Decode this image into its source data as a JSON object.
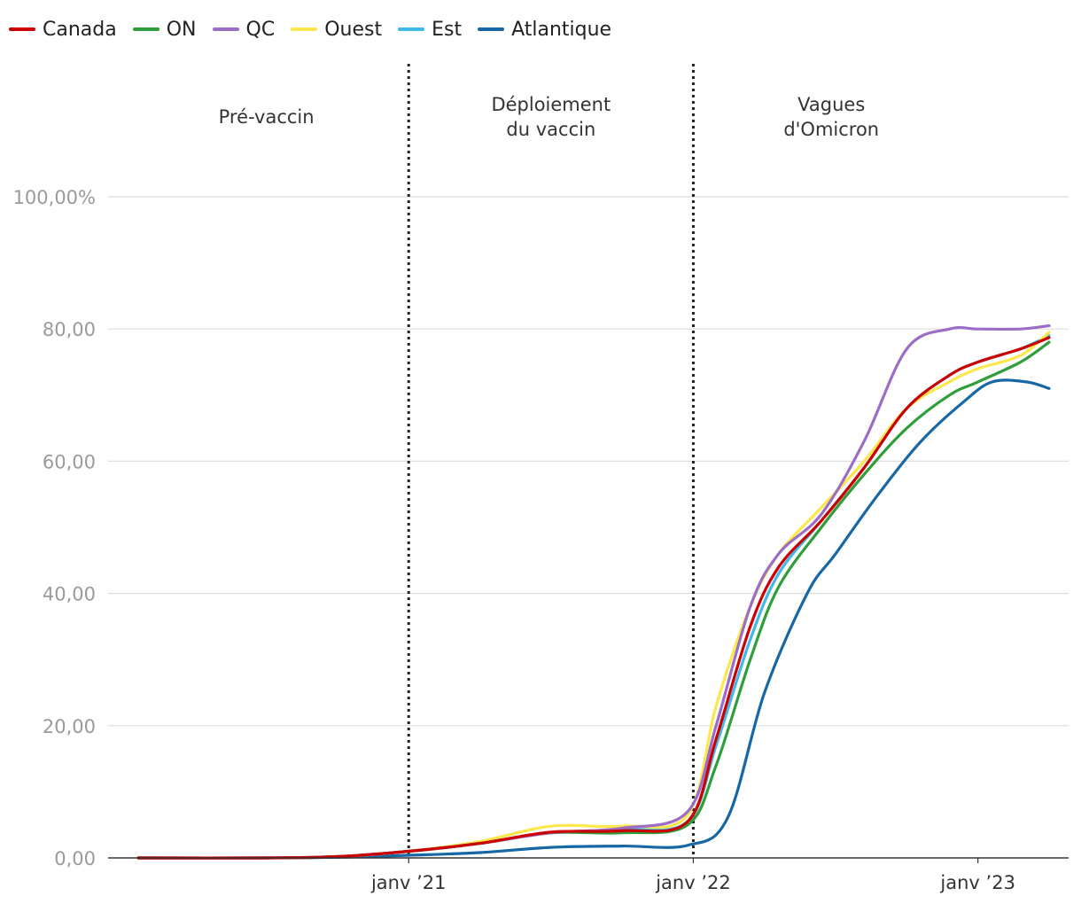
{
  "chart_data": {
    "type": "line",
    "title": "",
    "xlabel": "",
    "ylabel": "",
    "ylim": [
      0,
      100
    ],
    "yticks": [
      {
        "value": 0,
        "label": "0,00"
      },
      {
        "value": 20,
        "label": "20,00"
      },
      {
        "value": 40,
        "label": "40,00"
      },
      {
        "value": 60,
        "label": "60,00"
      },
      {
        "value": 80,
        "label": "80,00"
      },
      {
        "value": 100,
        "label": "100,00%"
      }
    ],
    "xrange": [
      2020.0,
      2023.25
    ],
    "xticks": [
      {
        "value": 2021.0,
        "label": "janv ’21"
      },
      {
        "value": 2022.0,
        "label": "janv ’22"
      },
      {
        "value": 2023.0,
        "label": "janv ’23"
      }
    ],
    "phases": [
      {
        "lines": [
          "Pré-vaccin"
        ],
        "start": 2020.0,
        "end": 2021.0
      },
      {
        "lines": [
          "Déploiement",
          "du vaccin"
        ],
        "start": 2021.0,
        "end": 2022.0
      },
      {
        "lines": [
          "Vagues",
          "d'Omicron"
        ],
        "start": 2022.0,
        "end": 2023.25
      }
    ],
    "dividers": [
      2021.0,
      2022.0
    ],
    "series": [
      {
        "name": "Atlantique",
        "color": "#1767a5",
        "x": [
          2020.05,
          2020.5,
          2020.75,
          2021.0,
          2021.25,
          2021.5,
          2021.75,
          2021.98,
          2022.12,
          2022.25,
          2022.4,
          2022.5,
          2022.65,
          2022.8,
          2022.95,
          2023.05,
          2023.17,
          2023.25
        ],
        "y": [
          0,
          0,
          0.1,
          0.4,
          0.8,
          1.6,
          1.8,
          1.9,
          6,
          25,
          40,
          46,
          55,
          63,
          69,
          72,
          72,
          71
        ]
      },
      {
        "name": "Est",
        "color": "#3eb9ea",
        "x": [
          2020.05,
          2020.5,
          2020.75,
          2021.0,
          2021.25,
          2021.5,
          2021.75,
          2021.98,
          2022.08,
          2022.2,
          2022.3,
          2022.45,
          2022.6,
          2022.75,
          2022.9,
          2023.0,
          2023.15,
          2023.25
        ],
        "y": [
          0,
          0,
          0.2,
          1.0,
          2.2,
          3.8,
          4.3,
          5.5,
          17,
          33,
          43,
          51,
          59,
          68,
          73,
          75,
          77,
          79
        ]
      },
      {
        "name": "Ouest",
        "color": "#fde74c",
        "x": [
          2020.05,
          2020.5,
          2020.75,
          2021.0,
          2021.25,
          2021.5,
          2021.75,
          2021.98,
          2022.08,
          2022.2,
          2022.3,
          2022.45,
          2022.6,
          2022.75,
          2022.9,
          2023.0,
          2023.15,
          2023.25
        ],
        "y": [
          0,
          0,
          0.2,
          1.0,
          2.5,
          4.8,
          4.8,
          6.5,
          23,
          38,
          46,
          53,
          60,
          68,
          72,
          74,
          76,
          79.5
        ]
      },
      {
        "name": "ON",
        "color": "#2f9e3a",
        "x": [
          2020.05,
          2020.5,
          2020.75,
          2021.0,
          2021.25,
          2021.5,
          2021.75,
          2021.98,
          2022.08,
          2022.2,
          2022.3,
          2022.45,
          2022.6,
          2022.75,
          2022.9,
          2023.0,
          2023.15,
          2023.25
        ],
        "y": [
          0,
          0,
          0.2,
          1.0,
          2.2,
          3.8,
          3.8,
          5.0,
          14,
          30,
          41,
          50,
          58,
          65,
          70,
          72,
          75,
          78
        ]
      },
      {
        "name": "QC",
        "color": "#9b6dc6",
        "x": [
          2020.05,
          2020.5,
          2020.75,
          2021.0,
          2021.25,
          2021.5,
          2021.75,
          2021.98,
          2022.08,
          2022.2,
          2022.3,
          2022.45,
          2022.6,
          2022.75,
          2022.9,
          2023.0,
          2023.15,
          2023.25
        ],
        "y": [
          0,
          0,
          0.2,
          1.0,
          2.2,
          3.8,
          4.5,
          7.0,
          20,
          38,
          46,
          52,
          63,
          77,
          80,
          80,
          80,
          80.5
        ]
      },
      {
        "name": "Canada",
        "color": "#cc0000",
        "x": [
          2020.05,
          2020.5,
          2020.75,
          2021.0,
          2021.25,
          2021.5,
          2021.75,
          2021.98,
          2022.08,
          2022.2,
          2022.3,
          2022.45,
          2022.6,
          2022.75,
          2022.9,
          2023.0,
          2023.15,
          2023.25
        ],
        "y": [
          0,
          0,
          0.2,
          1.0,
          2.2,
          3.9,
          4.1,
          5.5,
          18,
          35,
          44,
          51,
          59,
          68,
          73,
          75,
          77,
          78.7
        ]
      }
    ],
    "legend": [
      {
        "name": "Canada",
        "color": "#cc0000"
      },
      {
        "name": "ON",
        "color": "#2f9e3a"
      },
      {
        "name": "QC",
        "color": "#9b6dc6"
      },
      {
        "name": "Ouest",
        "color": "#fde74c"
      },
      {
        "name": "Est",
        "color": "#3eb9ea"
      },
      {
        "name": "Atlantique",
        "color": "#1767a5"
      }
    ]
  }
}
